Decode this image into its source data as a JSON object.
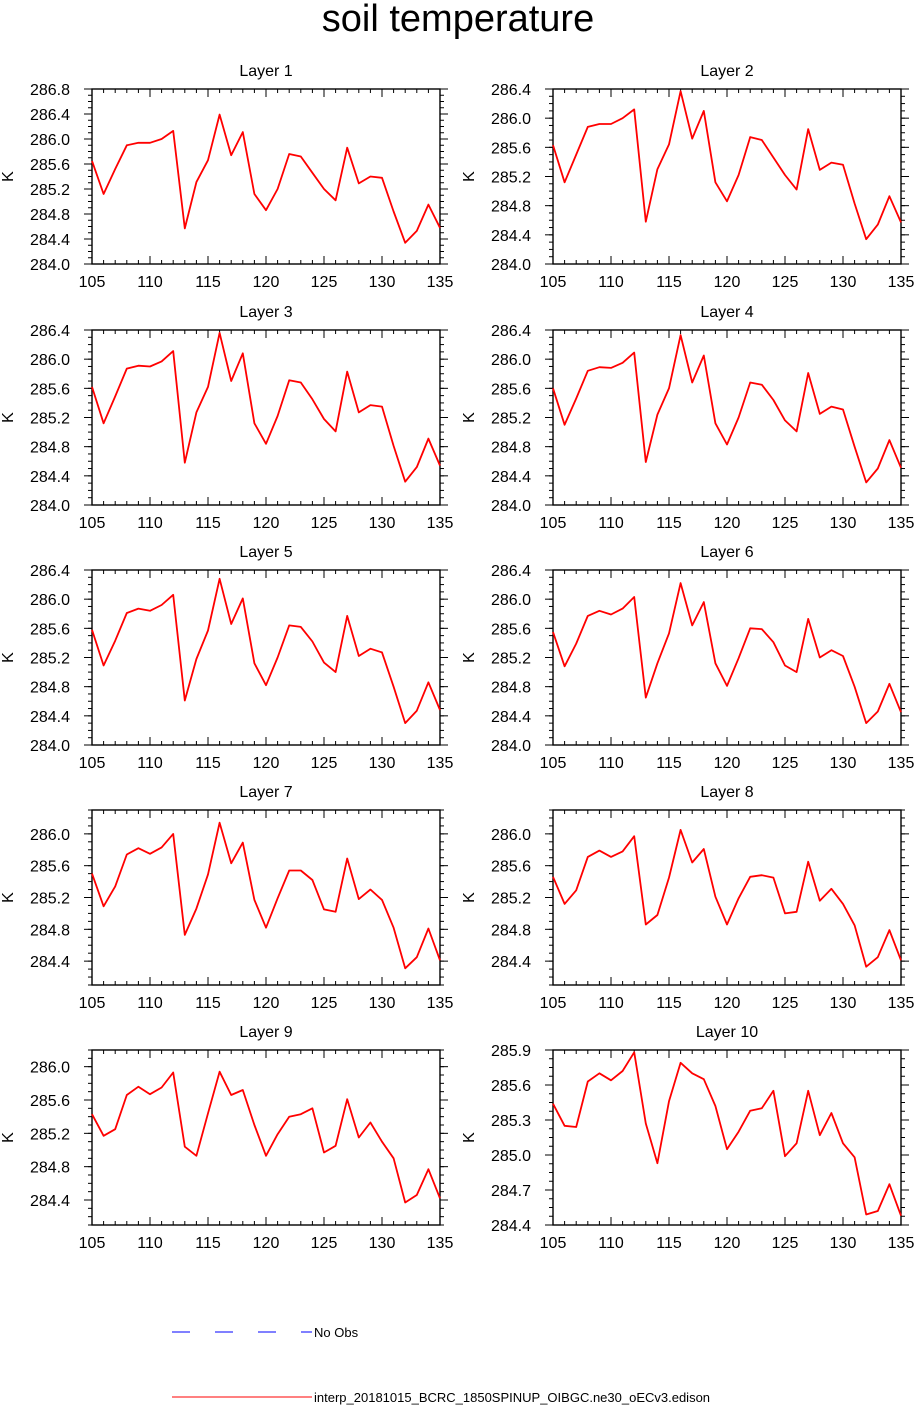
{
  "title": "soil temperature",
  "colors": {
    "model_line": "#ff0000",
    "obs_line": "#0000ff",
    "axis": "#000000"
  },
  "legend": {
    "obs_label": "No Obs",
    "model_label": "interp_20181015_BCRC_1850SPINUP_OIBGC.ne30_oECv3.edison"
  },
  "chart_data": [
    {
      "type": "line",
      "title": "Layer 1",
      "xlabel": "",
      "ylabel": "K",
      "x": [
        105,
        106,
        107,
        108,
        109,
        110,
        111,
        112,
        113,
        114,
        115,
        116,
        117,
        118,
        119,
        120,
        121,
        122,
        123,
        124,
        125,
        126,
        127,
        128,
        129,
        130,
        131,
        132,
        133,
        134,
        135
      ],
      "values": [
        285.65,
        285.12,
        285.52,
        285.9,
        285.94,
        285.94,
        286.0,
        286.13,
        284.57,
        285.31,
        285.66,
        286.39,
        285.74,
        286.11,
        285.12,
        284.86,
        285.2,
        285.76,
        285.72,
        285.46,
        285.2,
        285.02,
        285.86,
        285.29,
        285.4,
        285.38,
        284.84,
        284.34,
        284.53,
        284.95,
        284.58
      ],
      "xlim": [
        105,
        135
      ],
      "ylim": [
        284.0,
        286.8
      ],
      "xticks": [
        105,
        110,
        115,
        120,
        125,
        130,
        135
      ],
      "yticks": [
        284.0,
        284.4,
        284.8,
        285.2,
        285.6,
        286.0,
        286.4,
        286.8
      ],
      "ytick_labels": [
        "284.0",
        "284.4",
        "284.8",
        "285.2",
        "285.6",
        "286.0",
        "286.4",
        "286.8"
      ]
    },
    {
      "type": "line",
      "title": "Layer 2",
      "xlabel": "",
      "ylabel": "K",
      "x": [
        105,
        106,
        107,
        108,
        109,
        110,
        111,
        112,
        113,
        114,
        115,
        116,
        117,
        118,
        119,
        120,
        121,
        122,
        123,
        124,
        125,
        126,
        127,
        128,
        129,
        130,
        131,
        132,
        133,
        134,
        135
      ],
      "values": [
        285.63,
        285.12,
        285.5,
        285.88,
        285.92,
        285.92,
        286.0,
        286.12,
        284.58,
        285.3,
        285.64,
        286.37,
        285.72,
        286.1,
        285.12,
        284.86,
        285.22,
        285.74,
        285.7,
        285.46,
        285.22,
        285.02,
        285.85,
        285.29,
        285.39,
        285.36,
        284.83,
        284.34,
        284.54,
        284.93,
        284.57
      ],
      "xlim": [
        105,
        135
      ],
      "ylim": [
        284.0,
        286.4
      ],
      "xticks": [
        105,
        110,
        115,
        120,
        125,
        130,
        135
      ],
      "yticks": [
        284.0,
        284.4,
        284.8,
        285.2,
        285.6,
        286.0,
        286.4
      ],
      "ytick_labels": [
        "284.0",
        "284.4",
        "284.8",
        "285.2",
        "285.6",
        "286.0",
        "286.4"
      ]
    },
    {
      "type": "line",
      "title": "Layer 3",
      "xlabel": "",
      "ylabel": "K",
      "x": [
        105,
        106,
        107,
        108,
        109,
        110,
        111,
        112,
        113,
        114,
        115,
        116,
        117,
        118,
        119,
        120,
        121,
        122,
        123,
        124,
        125,
        126,
        127,
        128,
        129,
        130,
        131,
        132,
        133,
        134,
        135
      ],
      "values": [
        285.62,
        285.12,
        285.49,
        285.87,
        285.91,
        285.9,
        285.97,
        286.11,
        284.58,
        285.27,
        285.62,
        286.36,
        285.7,
        286.08,
        285.12,
        284.84,
        285.22,
        285.71,
        285.68,
        285.45,
        285.18,
        285.01,
        285.83,
        285.27,
        285.37,
        285.35,
        284.81,
        284.32,
        284.52,
        284.91,
        284.54
      ],
      "xlim": [
        105,
        135
      ],
      "ylim": [
        284.0,
        286.4
      ],
      "xticks": [
        105,
        110,
        115,
        120,
        125,
        130,
        135
      ],
      "yticks": [
        284.0,
        284.4,
        284.8,
        285.2,
        285.6,
        286.0,
        286.4
      ],
      "ytick_labels": [
        "284.0",
        "284.4",
        "284.8",
        "285.2",
        "285.6",
        "286.0",
        "286.4"
      ]
    },
    {
      "type": "line",
      "title": "Layer 4",
      "xlabel": "",
      "ylabel": "K",
      "x": [
        105,
        106,
        107,
        108,
        109,
        110,
        111,
        112,
        113,
        114,
        115,
        116,
        117,
        118,
        119,
        120,
        121,
        122,
        123,
        124,
        125,
        126,
        127,
        128,
        129,
        130,
        131,
        132,
        133,
        134,
        135
      ],
      "values": [
        285.6,
        285.1,
        285.46,
        285.84,
        285.89,
        285.88,
        285.95,
        286.09,
        284.59,
        285.24,
        285.6,
        286.33,
        285.68,
        286.05,
        285.12,
        284.83,
        285.2,
        285.68,
        285.65,
        285.44,
        285.16,
        285.01,
        285.81,
        285.25,
        285.35,
        285.31,
        284.8,
        284.31,
        284.5,
        284.89,
        284.51
      ],
      "xlim": [
        105,
        135
      ],
      "ylim": [
        284.0,
        286.4
      ],
      "xticks": [
        105,
        110,
        115,
        120,
        125,
        130,
        135
      ],
      "yticks": [
        284.0,
        284.4,
        284.8,
        285.2,
        285.6,
        286.0,
        286.4
      ],
      "ytick_labels": [
        "284.0",
        "284.4",
        "284.8",
        "285.2",
        "285.6",
        "286.0",
        "286.4"
      ]
    },
    {
      "type": "line",
      "title": "Layer 5",
      "xlabel": "",
      "ylabel": "K",
      "x": [
        105,
        106,
        107,
        108,
        109,
        110,
        111,
        112,
        113,
        114,
        115,
        116,
        117,
        118,
        119,
        120,
        121,
        122,
        123,
        124,
        125,
        126,
        127,
        128,
        129,
        130,
        131,
        132,
        133,
        134,
        135
      ],
      "values": [
        285.58,
        285.09,
        285.43,
        285.81,
        285.87,
        285.84,
        285.92,
        286.06,
        284.61,
        285.18,
        285.57,
        286.28,
        285.66,
        286.01,
        285.12,
        284.82,
        285.2,
        285.64,
        285.62,
        285.42,
        285.13,
        285.0,
        285.77,
        285.22,
        285.32,
        285.27,
        284.8,
        284.3,
        284.47,
        284.86,
        284.48
      ],
      "xlim": [
        105,
        135
      ],
      "ylim": [
        284.0,
        286.4
      ],
      "xticks": [
        105,
        110,
        115,
        120,
        125,
        130,
        135
      ],
      "yticks": [
        284.0,
        284.4,
        284.8,
        285.2,
        285.6,
        286.0,
        286.4
      ],
      "ytick_labels": [
        "284.0",
        "284.4",
        "284.8",
        "285.2",
        "285.6",
        "286.0",
        "286.4"
      ]
    },
    {
      "type": "line",
      "title": "Layer 6",
      "xlabel": "",
      "ylabel": "K",
      "x": [
        105,
        106,
        107,
        108,
        109,
        110,
        111,
        112,
        113,
        114,
        115,
        116,
        117,
        118,
        119,
        120,
        121,
        122,
        123,
        124,
        125,
        126,
        127,
        128,
        129,
        130,
        131,
        132,
        133,
        134,
        135
      ],
      "values": [
        285.55,
        285.08,
        285.39,
        285.77,
        285.84,
        285.79,
        285.87,
        286.03,
        284.65,
        285.12,
        285.53,
        286.22,
        285.64,
        285.96,
        285.12,
        284.81,
        285.19,
        285.6,
        285.59,
        285.41,
        285.09,
        285.0,
        285.73,
        285.2,
        285.3,
        285.22,
        284.8,
        284.3,
        284.46,
        284.84,
        284.45
      ],
      "xlim": [
        105,
        135
      ],
      "ylim": [
        284.0,
        286.4
      ],
      "xticks": [
        105,
        110,
        115,
        120,
        125,
        130,
        135
      ],
      "yticks": [
        284.0,
        284.4,
        284.8,
        285.2,
        285.6,
        286.0,
        286.4
      ],
      "ytick_labels": [
        "284.0",
        "284.4",
        "284.8",
        "285.2",
        "285.6",
        "286.0",
        "286.4"
      ]
    },
    {
      "type": "line",
      "title": "Layer 7",
      "xlabel": "",
      "ylabel": "K",
      "x": [
        105,
        106,
        107,
        108,
        109,
        110,
        111,
        112,
        113,
        114,
        115,
        116,
        117,
        118,
        119,
        120,
        121,
        122,
        123,
        124,
        125,
        126,
        127,
        128,
        129,
        130,
        131,
        132,
        133,
        134,
        135
      ],
      "values": [
        285.5,
        285.09,
        285.34,
        285.74,
        285.82,
        285.75,
        285.83,
        286.0,
        284.73,
        285.06,
        285.49,
        286.14,
        285.63,
        285.89,
        285.17,
        284.82,
        285.19,
        285.54,
        285.54,
        285.42,
        285.05,
        285.02,
        285.69,
        285.18,
        285.3,
        285.17,
        284.82,
        284.31,
        284.45,
        284.81,
        284.41
      ],
      "xlim": [
        105,
        135
      ],
      "ylim": [
        284.1,
        286.3
      ],
      "xticks": [
        105,
        110,
        115,
        120,
        125,
        130,
        135
      ],
      "yticks": [
        284.4,
        284.8,
        285.2,
        285.6,
        286.0
      ],
      "ytick_labels": [
        "284.4",
        "284.8",
        "285.2",
        "285.6",
        "286.0"
      ]
    },
    {
      "type": "line",
      "title": "Layer 8",
      "xlabel": "",
      "ylabel": "K",
      "x": [
        105,
        106,
        107,
        108,
        109,
        110,
        111,
        112,
        113,
        114,
        115,
        116,
        117,
        118,
        119,
        120,
        121,
        122,
        123,
        124,
        125,
        126,
        127,
        128,
        129,
        130,
        131,
        132,
        133,
        134,
        135
      ],
      "values": [
        285.46,
        285.12,
        285.29,
        285.71,
        285.79,
        285.71,
        285.78,
        285.97,
        284.86,
        284.98,
        285.45,
        286.05,
        285.64,
        285.81,
        285.21,
        284.86,
        285.19,
        285.46,
        285.48,
        285.45,
        285.0,
        285.02,
        285.65,
        285.16,
        285.31,
        285.12,
        284.85,
        284.33,
        284.45,
        284.79,
        284.41
      ],
      "xlim": [
        105,
        135
      ],
      "ylim": [
        284.1,
        286.3
      ],
      "xticks": [
        105,
        110,
        115,
        120,
        125,
        130,
        135
      ],
      "yticks": [
        284.4,
        284.8,
        285.2,
        285.6,
        286.0
      ],
      "ytick_labels": [
        "284.4",
        "284.8",
        "285.2",
        "285.6",
        "286.0"
      ]
    },
    {
      "type": "line",
      "title": "Layer 9",
      "xlabel": "",
      "ylabel": "K",
      "x": [
        105,
        106,
        107,
        108,
        109,
        110,
        111,
        112,
        113,
        114,
        115,
        116,
        117,
        118,
        119,
        120,
        121,
        122,
        123,
        124,
        125,
        126,
        127,
        128,
        129,
        130,
        131,
        132,
        133,
        134,
        135
      ],
      "values": [
        285.43,
        285.17,
        285.25,
        285.66,
        285.76,
        285.67,
        285.75,
        285.93,
        285.04,
        284.93,
        285.44,
        285.94,
        285.66,
        285.72,
        285.3,
        284.93,
        285.19,
        285.4,
        285.43,
        285.5,
        284.97,
        285.05,
        285.61,
        285.15,
        285.33,
        285.1,
        284.9,
        284.37,
        284.46,
        284.77,
        284.42
      ],
      "xlim": [
        105,
        135
      ],
      "ylim": [
        284.1,
        286.2
      ],
      "xticks": [
        105,
        110,
        115,
        120,
        125,
        130,
        135
      ],
      "yticks": [
        284.4,
        284.8,
        285.2,
        285.6,
        286.0
      ],
      "ytick_labels": [
        "284.4",
        "284.8",
        "285.2",
        "285.6",
        "286.0"
      ]
    },
    {
      "type": "line",
      "title": "Layer 10",
      "xlabel": "",
      "ylabel": "K",
      "x": [
        105,
        106,
        107,
        108,
        109,
        110,
        111,
        112,
        113,
        114,
        115,
        116,
        117,
        118,
        119,
        120,
        121,
        122,
        123,
        124,
        125,
        126,
        127,
        128,
        129,
        130,
        131,
        132,
        133,
        134,
        135
      ],
      "values": [
        285.44,
        285.25,
        285.24,
        285.63,
        285.7,
        285.64,
        285.72,
        285.88,
        285.27,
        284.93,
        285.46,
        285.79,
        285.7,
        285.65,
        285.42,
        285.05,
        285.2,
        285.38,
        285.4,
        285.55,
        284.99,
        285.1,
        285.55,
        285.17,
        285.36,
        285.1,
        284.98,
        284.49,
        284.52,
        284.75,
        284.48
      ],
      "xlim": [
        105,
        135
      ],
      "ylim": [
        284.4,
        285.9
      ],
      "xticks": [
        105,
        110,
        115,
        120,
        125,
        130,
        135
      ],
      "yticks": [
        284.4,
        284.7,
        285.0,
        285.3,
        285.6,
        285.9
      ],
      "ytick_labels": [
        "284.4",
        "284.7",
        "285.0",
        "285.3",
        "285.6",
        "285.9"
      ]
    }
  ]
}
